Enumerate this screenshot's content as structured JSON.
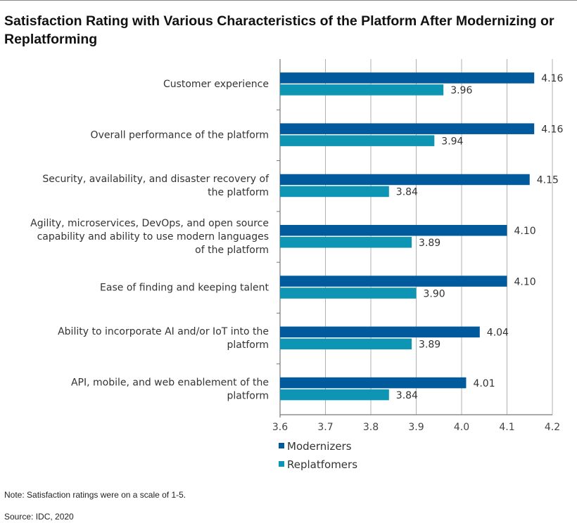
{
  "chart_data": {
    "type": "bar",
    "orientation": "horizontal",
    "title": "Satisfaction Rating with Various Characteristics of the Platform After Modernizing or Replatforming",
    "categories": [
      "Customer experience",
      "Overall performance of the platform",
      "Security, availability, and disaster recovery of the platform",
      "Agility, microservices, DevOps, and open source capability and ability to use modern languages of the platform",
      "Ease of finding and keeping talent",
      "Ability to incorporate AI and/or IoT into the platform",
      "API, mobile, and web enablement of the platform"
    ],
    "category_lines": [
      [
        "Customer experience"
      ],
      [
        "Overall performance of the platform"
      ],
      [
        "Security, availability, and disaster recovery of",
        "the platform"
      ],
      [
        "Agility, microservices, DevOps, and open source",
        "capability and ability to use modern languages",
        "of the platform"
      ],
      [
        "Ease of finding and keeping talent"
      ],
      [
        "Ability to incorporate AI and/or IoT into the",
        "platform"
      ],
      [
        "API, mobile, and web enablement of the",
        "platform"
      ]
    ],
    "series": [
      {
        "name": "Modernizers",
        "color": "#005a9c",
        "values": [
          4.16,
          4.16,
          4.15,
          4.1,
          4.1,
          4.04,
          4.01
        ],
        "labels": [
          "4.16",
          "4.16",
          "4.15",
          "4.10",
          "4.10",
          "4.04",
          "4.01"
        ]
      },
      {
        "name": "Replatfomers",
        "color": "#0e95b3",
        "values": [
          3.96,
          3.94,
          3.84,
          3.89,
          3.9,
          3.89,
          3.84
        ],
        "labels": [
          "3.96",
          "3.94",
          "3.84",
          "3.89",
          "3.90",
          "3.89",
          "3.84"
        ]
      }
    ],
    "xlim": [
      3.6,
      4.2
    ],
    "xticks": [
      "3.6",
      "3.7",
      "3.8",
      "3.9",
      "4.0",
      "4.1",
      "4.2"
    ],
    "grid": true,
    "legend": "bottom-left",
    "xlabel": "",
    "ylabel": ""
  },
  "notes": {
    "note": "Note: Satisfaction ratings were on a scale of 1-5.",
    "source": "Source: IDC, 2020"
  }
}
